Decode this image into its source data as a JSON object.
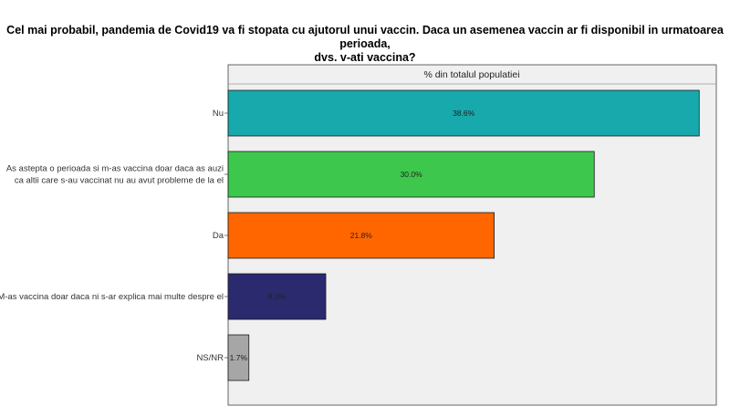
{
  "chart_data": {
    "type": "bar",
    "orientation": "horizontal",
    "title": "Cel mai probabil, pandemia de Covid19 va fi stopata cu ajutorul unui vaccin. Daca un asemenea vaccin ar fi disponibil in urmatoarea perioada, dvs. v-ati vaccina?",
    "title_lines": [
      "Cel mai probabil, pandemia de Covid19 va fi stopata cu ajutorul unui vaccin. Daca un asemenea vaccin ar fi disponibil in urmatoarea perioada,",
      "dvs. v-ati vaccina?"
    ],
    "subtitle": "% din totalul populatiei",
    "categories": [
      [
        "Nu"
      ],
      [
        "As astepta o perioada si m-as vaccina  doar daca as auzi",
        "ca altii care s-au vaccinat nu au avut probleme de la el"
      ],
      [
        "Da"
      ],
      [
        "M-as vaccina doar daca ni s-ar explica mai multe despre el"
      ],
      [
        "NS/NR"
      ]
    ],
    "values": [
      38.6,
      30.0,
      21.8,
      8.0,
      1.7
    ],
    "data_labels": [
      "38.6%",
      "30.0%",
      "21.8%",
      "8.0%",
      "1.7%"
    ],
    "colors": [
      "#17a9ab",
      "#3ec74d",
      "#ff6600",
      "#2b2a6e",
      "#a6a6a6"
    ],
    "xlim": [
      0,
      40
    ],
    "grid": false,
    "legend": "none",
    "plot_background": "#f0f0f0"
  }
}
